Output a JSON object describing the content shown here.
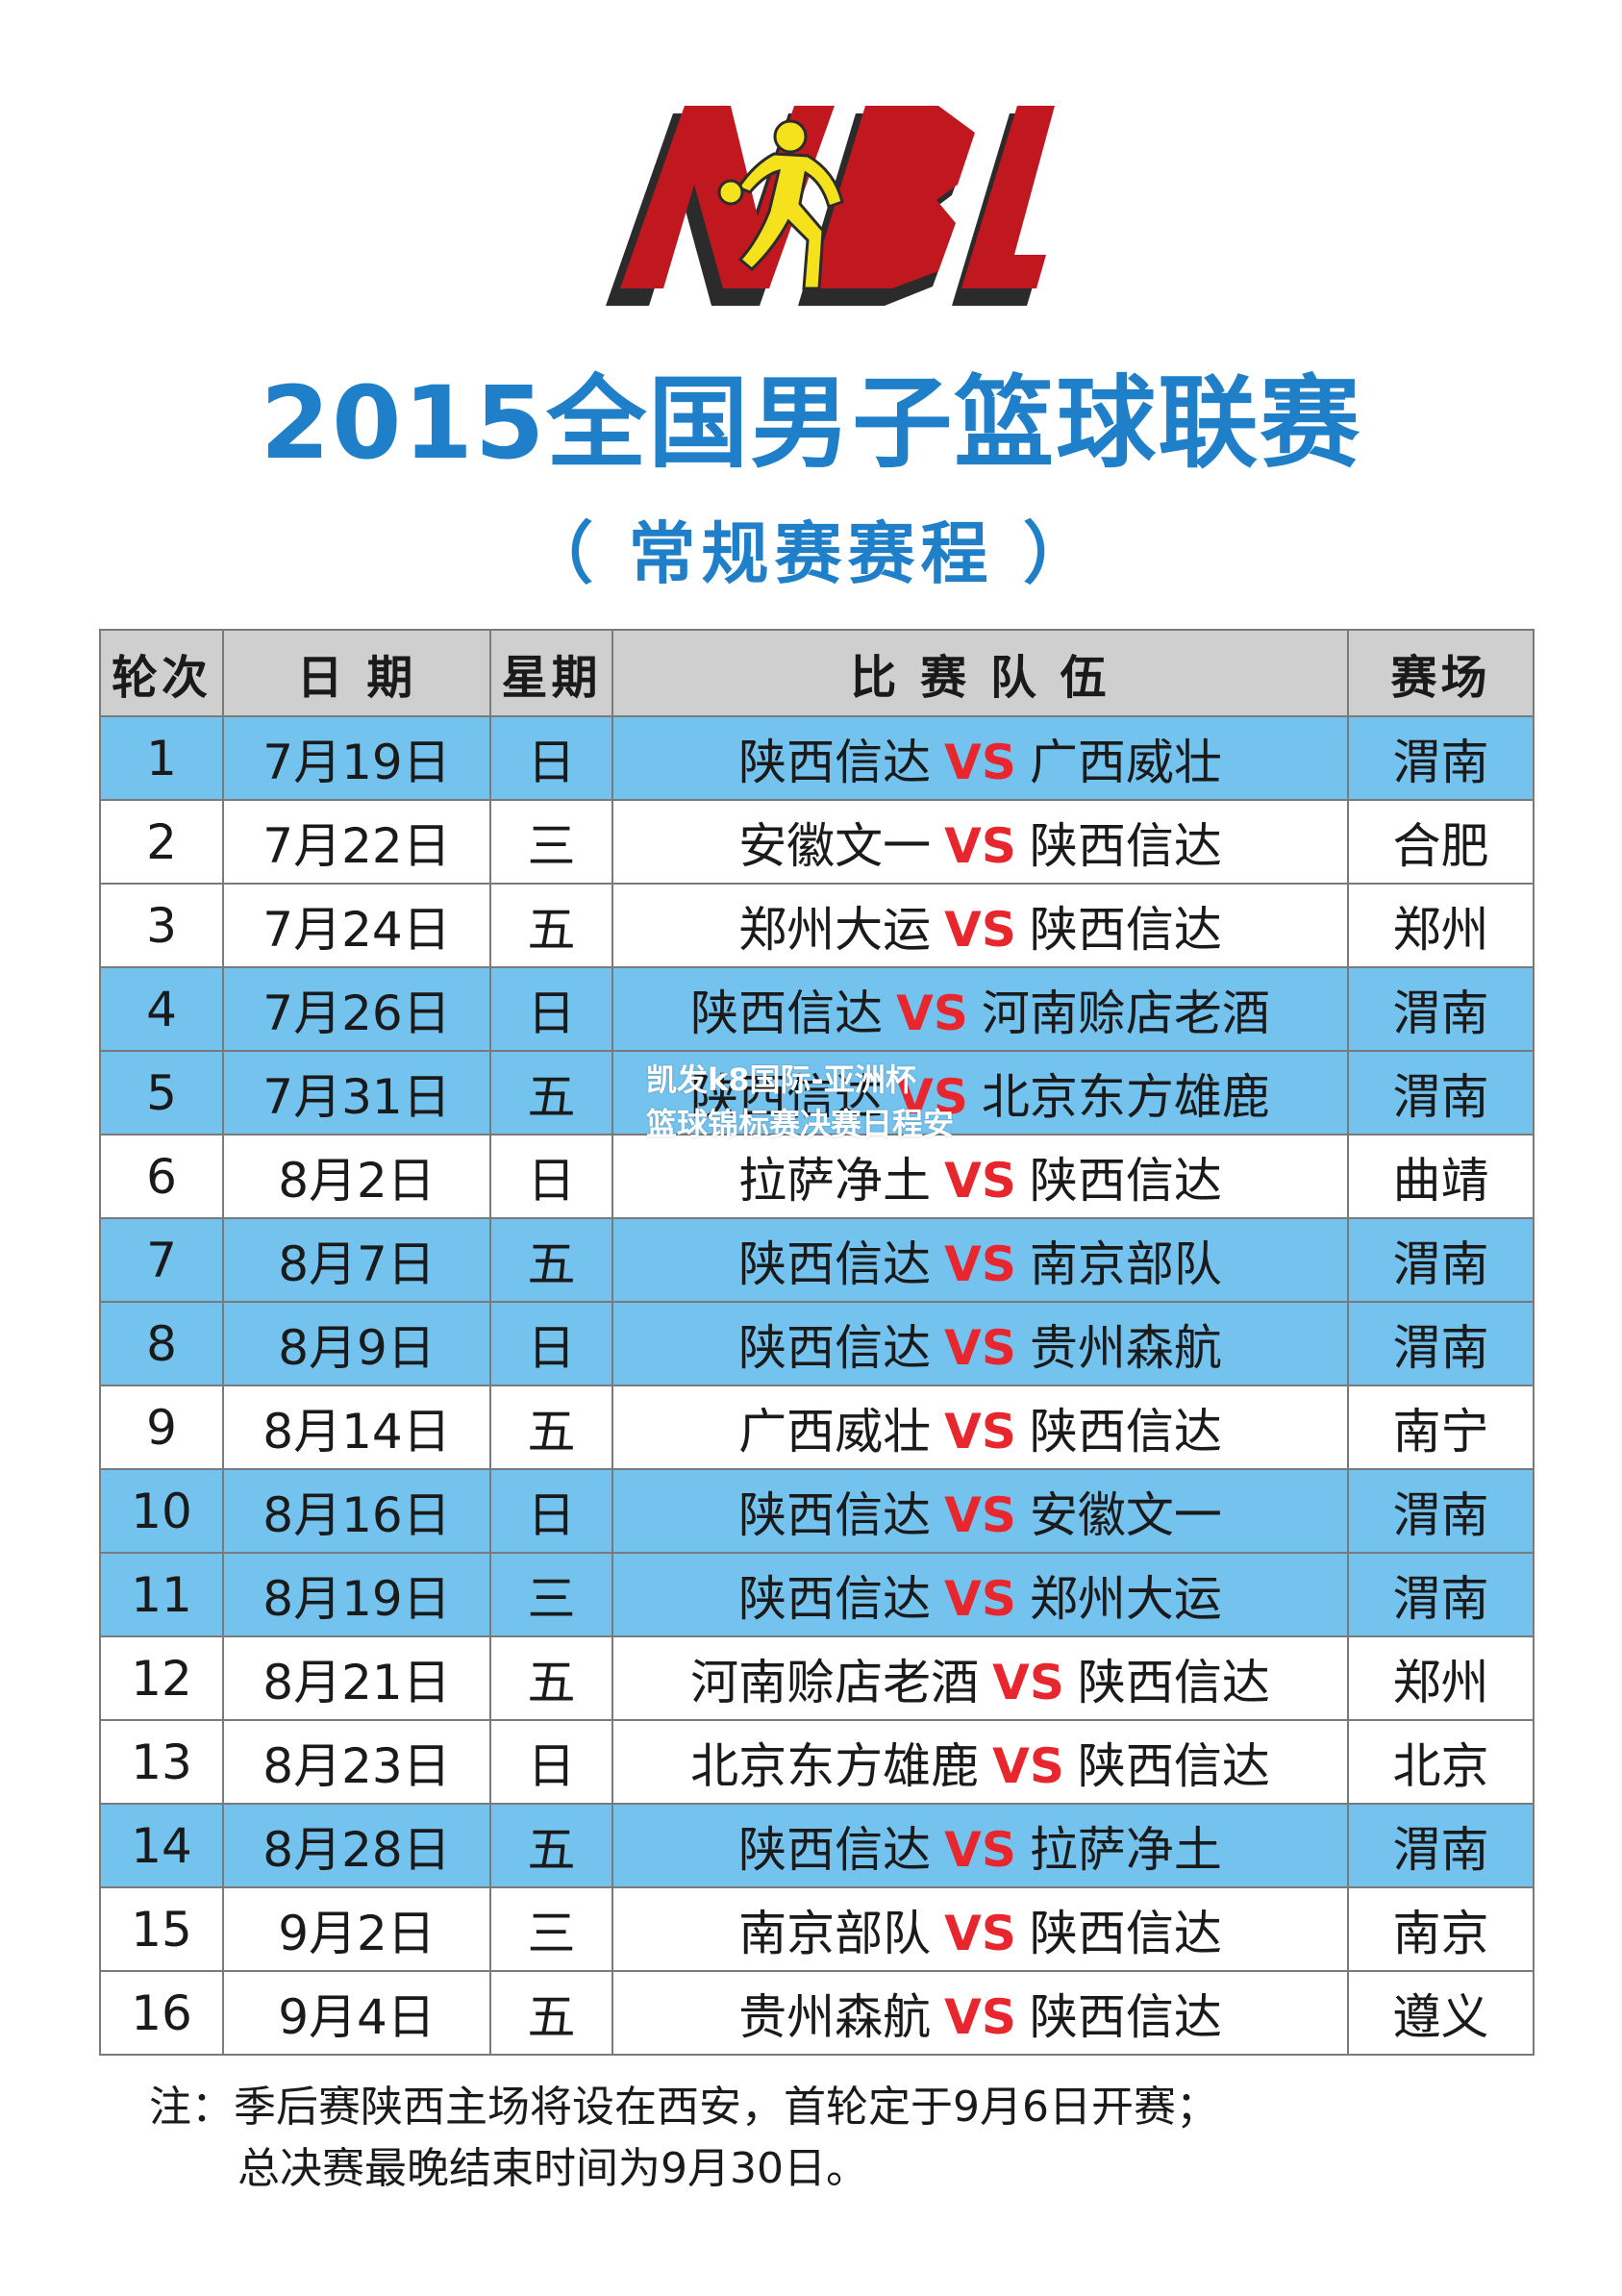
{
  "logo": {
    "text": "NBL",
    "colors": {
      "red": "#c0181e",
      "shadow": "#2b2b2b",
      "figure": "#f5e21c"
    }
  },
  "header": {
    "title": "2015全国男子篮球联赛",
    "subtitle": "（ 常规赛赛程 ）"
  },
  "table": {
    "columns": [
      "轮次",
      "日 期",
      "星期",
      "比 赛 队 伍",
      "赛场"
    ],
    "vs_label": "VS",
    "rows": [
      {
        "round": "1",
        "date": "7月19日",
        "weekday": "日",
        "team1": "陕西信达",
        "team2": "广西威壮",
        "venue": "渭南",
        "home": true
      },
      {
        "round": "2",
        "date": "7月22日",
        "weekday": "三",
        "team1": "安徽文一",
        "team2": "陕西信达",
        "venue": "合肥",
        "home": false
      },
      {
        "round": "3",
        "date": "7月24日",
        "weekday": "五",
        "team1": "郑州大运",
        "team2": "陕西信达",
        "venue": "郑州",
        "home": false
      },
      {
        "round": "4",
        "date": "7月26日",
        "weekday": "日",
        "team1": "陕西信达",
        "team2": "河南赊店老酒",
        "venue": "渭南",
        "home": true
      },
      {
        "round": "5",
        "date": "7月31日",
        "weekday": "五",
        "team1": "陕西信达",
        "team2": "北京东方雄鹿",
        "venue": "渭南",
        "home": true
      },
      {
        "round": "6",
        "date": "8月2日",
        "weekday": "日",
        "team1": "拉萨净土",
        "team2": "陕西信达",
        "venue": "曲靖",
        "home": false
      },
      {
        "round": "7",
        "date": "8月7日",
        "weekday": "五",
        "team1": "陕西信达",
        "team2": "南京部队",
        "venue": "渭南",
        "home": true
      },
      {
        "round": "8",
        "date": "8月9日",
        "weekday": "日",
        "team1": "陕西信达",
        "team2": "贵州森航",
        "venue": "渭南",
        "home": true
      },
      {
        "round": "9",
        "date": "8月14日",
        "weekday": "五",
        "team1": "广西威壮",
        "team2": "陕西信达",
        "venue": "南宁",
        "home": false
      },
      {
        "round": "10",
        "date": "8月16日",
        "weekday": "日",
        "team1": "陕西信达",
        "team2": "安徽文一",
        "venue": "渭南",
        "home": true
      },
      {
        "round": "11",
        "date": "8月19日",
        "weekday": "三",
        "team1": "陕西信达",
        "team2": "郑州大运",
        "venue": "渭南",
        "home": true
      },
      {
        "round": "12",
        "date": "8月21日",
        "weekday": "五",
        "team1": "河南赊店老酒",
        "team2": "陕西信达",
        "venue": "郑州",
        "home": false
      },
      {
        "round": "13",
        "date": "8月23日",
        "weekday": "日",
        "team1": "北京东方雄鹿",
        "team2": "陕西信达",
        "venue": "北京",
        "home": false
      },
      {
        "round": "14",
        "date": "8月28日",
        "weekday": "五",
        "team1": "陕西信达",
        "team2": "拉萨净土",
        "venue": "渭南",
        "home": true
      },
      {
        "round": "15",
        "date": "9月2日",
        "weekday": "三",
        "team1": "南京部队",
        "team2": "陕西信达",
        "venue": "南京",
        "home": false
      },
      {
        "round": "16",
        "date": "9月4日",
        "weekday": "五",
        "team1": "贵州森航",
        "team2": "陕西信达",
        "venue": "遵义",
        "home": false
      }
    ]
  },
  "watermark": {
    "line1": "凯发k8国际-亚洲杯",
    "line2": "篮球锦标赛决赛日程安"
  },
  "note": {
    "line1": "注：季后赛陕西主场将设在西安，首轮定于9月6日开赛；",
    "line2": "总决赛最晚结束时间为9月30日。"
  },
  "colors": {
    "title_blue": "#1f7fc8",
    "row_highlight": "#74c3ee",
    "vs_red": "#e8262e",
    "header_gray": "#cfcfcf"
  }
}
